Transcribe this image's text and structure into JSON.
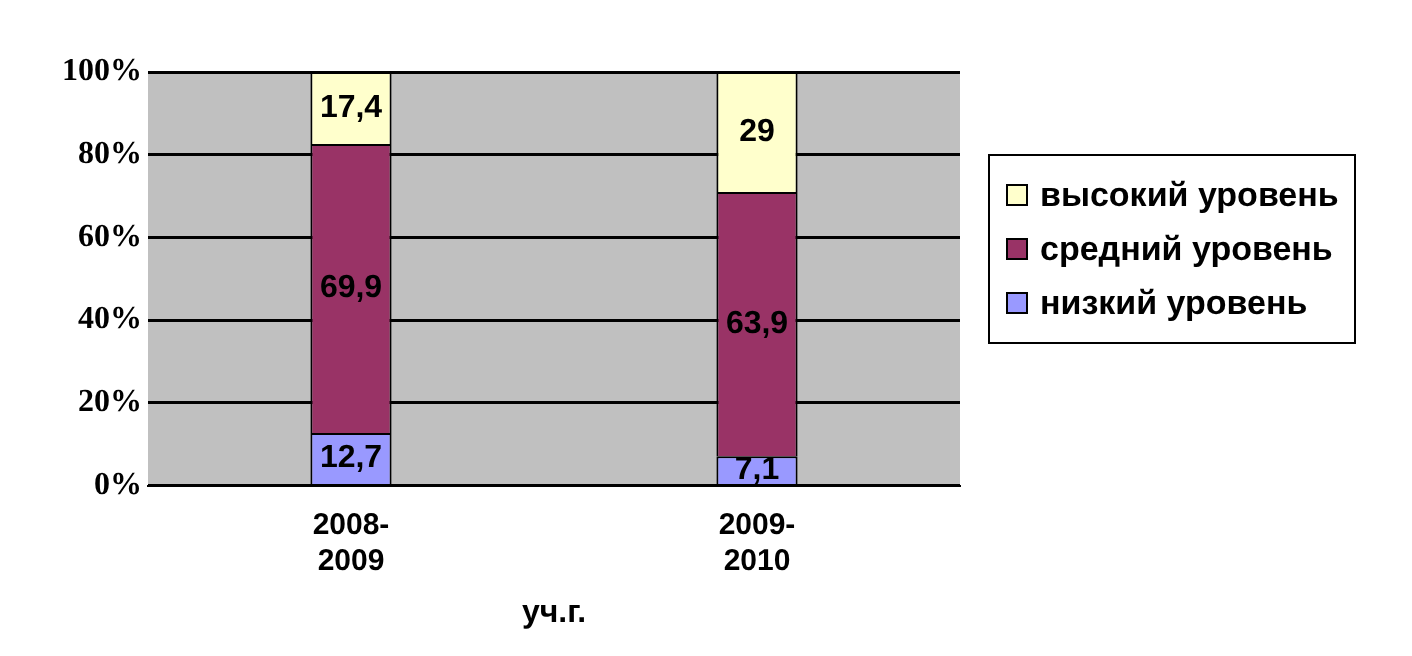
{
  "chart_data": {
    "type": "bar",
    "stacked": true,
    "xlabel": "уч.г.",
    "categories": [
      "2008-2009",
      "2009-2010"
    ],
    "series": [
      {
        "name": "низкий уровень",
        "color": "#9999ff",
        "values": [
          12.7,
          7.1
        ],
        "value_labels": [
          "12,7",
          "7,1"
        ]
      },
      {
        "name": "средний уровень",
        "color": "#993366",
        "values": [
          69.9,
          63.9
        ],
        "value_labels": [
          "69,9",
          "63,9"
        ]
      },
      {
        "name": "высокий уровень",
        "color": "#ffffcc",
        "values": [
          17.4,
          29
        ],
        "value_labels": [
          "17,4",
          "29"
        ]
      }
    ],
    "ylim": [
      0,
      100
    ],
    "yticks": [
      {
        "value": 0,
        "label": "0%"
      },
      {
        "value": 20,
        "label": "20%"
      },
      {
        "value": 40,
        "label": "40%"
      },
      {
        "value": 60,
        "label": "60%"
      },
      {
        "value": 80,
        "label": "80%"
      },
      {
        "value": 100,
        "label": "100%"
      }
    ],
    "grid": "y",
    "legend": "right"
  }
}
